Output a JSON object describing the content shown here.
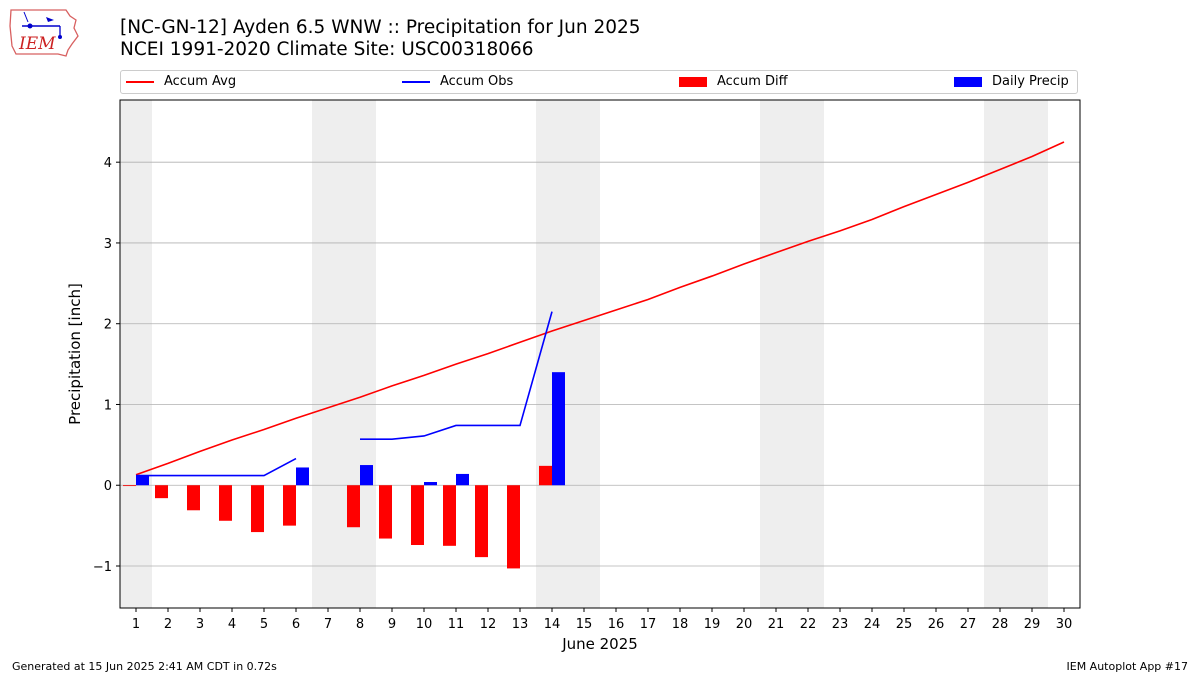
{
  "title_line1": "[NC-GN-12] Ayden 6.5 WNW :: Precipitation for Jun 2025",
  "title_line2": "NCEI 1991-2020 Climate Site: USC00318066",
  "logo_text": "IEM",
  "footer_left": "Generated at 15 Jun 2025 2:41 AM CDT in 0.72s",
  "footer_right": "IEM Autoplot App #17",
  "colors": {
    "accum_avg": "#ff0000",
    "accum_obs": "#0000ff",
    "accum_diff": "#ff0000",
    "daily_precip": "#0000ff",
    "weekend_band": "#eeeeee",
    "grid": "#b0b0b0"
  },
  "legend": [
    {
      "label": "Accum Avg",
      "kind": "line",
      "color": "#ff0000"
    },
    {
      "label": "Accum Obs",
      "kind": "line",
      "color": "#0000ff"
    },
    {
      "label": "Accum Diff",
      "kind": "bar",
      "color": "#ff0000"
    },
    {
      "label": "Daily Precip",
      "kind": "bar",
      "color": "#0000ff"
    }
  ],
  "chart_data": {
    "type": "bar",
    "xlabel": "June 2025",
    "ylabel": "Precipitation [inch]",
    "xlim": [
      0.5,
      30.5
    ],
    "ylim": [
      -1.52,
      4.77
    ],
    "yticks": [
      -1,
      0,
      1,
      2,
      3,
      4
    ],
    "ytick_labels": [
      "−1",
      "0",
      "1",
      "2",
      "3",
      "4"
    ],
    "x": [
      1,
      2,
      3,
      4,
      5,
      6,
      7,
      8,
      9,
      10,
      11,
      12,
      13,
      14,
      15,
      16,
      17,
      18,
      19,
      20,
      21,
      22,
      23,
      24,
      25,
      26,
      27,
      28,
      29,
      30
    ],
    "xtick_labels": [
      "1",
      "2",
      "3",
      "4",
      "5",
      "6",
      "7",
      "8",
      "9",
      "10",
      "11",
      "12",
      "13",
      "14",
      "15",
      "16",
      "17",
      "18",
      "19",
      "20",
      "21",
      "22",
      "23",
      "24",
      "25",
      "26",
      "27",
      "28",
      "29",
      "30"
    ],
    "grid": "horizontal",
    "weekend_bands": [
      [
        0.5,
        1.5
      ],
      [
        6.5,
        8.5
      ],
      [
        13.5,
        15.5
      ],
      [
        20.5,
        22.5
      ],
      [
        27.5,
        29.5
      ]
    ],
    "series": [
      {
        "name": "Accum Avg",
        "type": "line",
        "values": [
          0.13,
          0.27,
          0.42,
          0.56,
          0.69,
          0.83,
          0.96,
          1.09,
          1.23,
          1.36,
          1.5,
          1.63,
          1.77,
          1.91,
          2.04,
          2.17,
          2.3,
          2.45,
          2.59,
          2.74,
          2.88,
          3.02,
          3.15,
          3.29,
          3.45,
          3.6,
          3.75,
          3.91,
          4.07,
          4.25
        ]
      },
      {
        "name": "Accum Obs",
        "type": "line",
        "values": [
          0.12,
          0.12,
          0.12,
          0.12,
          0.12,
          0.33,
          null,
          0.57,
          0.57,
          0.61,
          0.74,
          0.74,
          0.74,
          2.15,
          null,
          null,
          null,
          null,
          null,
          null,
          null,
          null,
          null,
          null,
          null,
          null,
          null,
          null,
          null,
          null
        ]
      },
      {
        "name": "Accum Diff",
        "type": "bar",
        "values": [
          -0.01,
          -0.16,
          -0.31,
          -0.44,
          -0.58,
          -0.5,
          null,
          -0.52,
          -0.66,
          -0.74,
          -0.75,
          -0.89,
          -1.03,
          0.24,
          null,
          null,
          null,
          null,
          null,
          null,
          null,
          null,
          null,
          null,
          null,
          null,
          null,
          null,
          null,
          null
        ]
      },
      {
        "name": "Daily Precip",
        "type": "bar",
        "values": [
          0.12,
          0,
          0,
          0,
          0,
          0.22,
          null,
          0.25,
          0,
          0.04,
          0.14,
          0,
          0,
          1.4,
          null,
          null,
          null,
          null,
          null,
          null,
          null,
          null,
          null,
          null,
          null,
          null,
          null,
          null,
          null,
          null
        ]
      }
    ]
  }
}
